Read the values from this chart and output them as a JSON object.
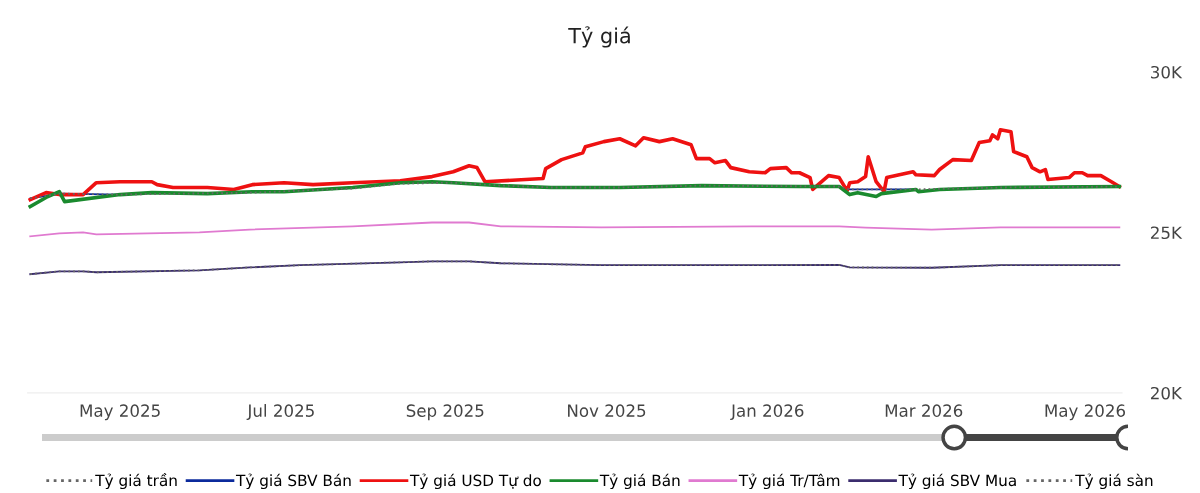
{
  "chart_data": {
    "type": "line",
    "title": "Tỷ giá",
    "legend": "bottom",
    "grid": false,
    "xlim": [
      "2025-03-27",
      "2026-05-15"
    ],
    "xticks": [
      {
        "value": "2025-05-01",
        "label": "May 2025"
      },
      {
        "value": "2025-07-01",
        "label": "Jul 2025"
      },
      {
        "value": "2025-09-01",
        "label": "Sep 2025"
      },
      {
        "value": "2025-11-01",
        "label": "Nov 2025"
      },
      {
        "value": "2026-01-01",
        "label": "Jan 2026"
      },
      {
        "value": "2026-03-01",
        "label": "Mar 2026"
      },
      {
        "value": "2026-05-01",
        "label": "May 2026"
      }
    ],
    "ylim": [
      20,
      30
    ],
    "yticks": [
      {
        "value": 20,
        "label": "20K"
      },
      {
        "value": 25,
        "label": "25K"
      },
      {
        "value": 30,
        "label": "30K"
      }
    ],
    "series": [
      {
        "name": "Tỷ giá trần",
        "color": "#666666",
        "line_style": "dotted",
        "x": [
          "2025-03-28",
          "2025-04-08",
          "2025-05-01",
          "2025-06-20",
          "2025-07-28",
          "2025-08-15",
          "2025-09-04",
          "2025-09-22",
          "2025-10-11",
          "2025-11-06",
          "2025-12-07",
          "2026-01-28",
          "2026-02-01",
          "2026-02-26",
          "2026-03-30",
          "2026-05-14"
        ],
        "values": [
          26.06,
          26.21,
          26.18,
          26.24,
          26.37,
          26.52,
          26.55,
          26.46,
          26.4,
          26.4,
          26.46,
          26.43,
          26.34,
          26.34,
          26.4,
          26.43
        ]
      },
      {
        "name": "Tỷ giá SBV Bán",
        "color": "#0b2a9c",
        "line_style": "solid",
        "x": [
          "2025-03-28",
          "2025-04-08",
          "2025-05-01",
          "2025-06-20",
          "2025-07-28",
          "2025-08-15",
          "2025-09-04",
          "2025-09-22",
          "2025-10-11",
          "2025-11-06",
          "2025-12-07",
          "2026-01-28",
          "2026-02-01",
          "2026-02-26"
        ],
        "values": [
          26.06,
          26.21,
          26.18,
          null,
          null,
          null,
          null,
          null,
          null,
          null,
          null,
          null,
          26.34,
          26.34
        ]
      },
      {
        "name": "Tỷ giá USD Tự do",
        "color": "#ee1111",
        "line_style": "solid",
        "x": [
          "2025-03-28",
          "2025-04-03",
          "2025-04-08",
          "2025-04-17",
          "2025-04-22",
          "2025-05-01",
          "2025-05-13",
          "2025-05-15",
          "2025-05-21",
          "2025-06-03",
          "2025-06-13",
          "2025-06-20",
          "2025-07-02",
          "2025-07-13",
          "2025-07-28",
          "2025-08-15",
          "2025-08-27",
          "2025-09-04",
          "2025-09-10",
          "2025-09-13",
          "2025-09-16",
          "2025-10-08",
          "2025-10-09",
          "2025-10-15",
          "2025-10-23",
          "2025-10-24",
          "2025-10-31",
          "2025-11-06",
          "2025-11-12",
          "2025-11-15",
          "2025-11-21",
          "2025-11-26",
          "2025-12-03",
          "2025-12-05",
          "2025-12-10",
          "2025-12-12",
          "2025-12-16",
          "2025-12-18",
          "2025-12-25",
          "2025-12-31",
          "2026-01-02",
          "2026-01-08",
          "2026-01-10",
          "2026-01-13",
          "2026-01-17",
          "2026-01-18",
          "2026-01-24",
          "2026-01-28",
          "2026-01-31",
          "2026-02-01",
          "2026-02-04",
          "2026-02-07",
          "2026-02-08",
          "2026-02-11",
          "2026-02-14",
          "2026-02-15",
          "2026-02-25",
          "2026-02-26",
          "2026-03-05",
          "2026-03-07",
          "2026-03-12",
          "2026-03-19",
          "2026-03-22",
          "2026-03-26",
          "2026-03-27",
          "2026-03-29",
          "2026-03-30",
          "2026-04-03",
          "2026-04-04",
          "2026-04-09",
          "2026-04-11",
          "2026-04-14",
          "2026-04-16",
          "2026-04-17",
          "2026-04-25",
          "2026-04-27",
          "2026-04-30",
          "2026-05-02",
          "2026-05-07",
          "2026-05-11",
          "2026-05-14"
        ],
        "values": [
          26.02,
          26.24,
          26.18,
          26.18,
          26.55,
          26.58,
          26.58,
          26.49,
          26.4,
          26.4,
          26.34,
          26.49,
          26.55,
          26.49,
          26.55,
          26.61,
          26.74,
          26.89,
          27.08,
          27.02,
          26.58,
          26.68,
          26.99,
          27.27,
          27.48,
          27.67,
          27.83,
          27.92,
          27.7,
          27.95,
          27.83,
          27.92,
          27.73,
          27.3,
          27.3,
          27.17,
          27.24,
          27.02,
          26.89,
          26.86,
          26.99,
          27.02,
          26.86,
          26.86,
          26.71,
          26.34,
          26.77,
          26.71,
          26.3,
          26.55,
          26.58,
          26.74,
          27.36,
          26.58,
          26.27,
          26.71,
          26.89,
          26.8,
          26.77,
          26.96,
          27.27,
          27.24,
          27.8,
          27.86,
          28.04,
          27.92,
          28.2,
          28.14,
          27.52,
          27.36,
          27.02,
          26.89,
          26.96,
          26.65,
          26.71,
          26.86,
          26.86,
          26.77,
          26.77,
          26.58,
          26.43
        ]
      },
      {
        "name": "Tỷ giá Bán",
        "color": "#1a8a2e",
        "line_style": "solid",
        "x": [
          "2025-03-28",
          "2025-04-03",
          "2025-04-08",
          "2025-04-10",
          "2025-05-01",
          "2025-05-13",
          "2025-06-03",
          "2025-06-20",
          "2025-07-02",
          "2025-07-28",
          "2025-08-15",
          "2025-08-27",
          "2025-09-04",
          "2025-09-22",
          "2025-10-11",
          "2025-11-06",
          "2025-12-07",
          "2026-01-13",
          "2026-01-28",
          "2026-02-01",
          "2026-02-04",
          "2026-02-11",
          "2026-02-13",
          "2026-02-26",
          "2026-02-27",
          "2026-03-07",
          "2026-03-30",
          "2026-05-14"
        ],
        "values": [
          25.81,
          26.09,
          26.27,
          25.96,
          26.18,
          26.24,
          26.21,
          26.27,
          26.27,
          26.4,
          26.55,
          26.58,
          26.55,
          26.46,
          26.4,
          26.4,
          26.46,
          26.43,
          26.43,
          26.18,
          26.24,
          26.12,
          26.21,
          26.34,
          26.27,
          26.34,
          26.4,
          26.43
        ]
      },
      {
        "name": "Tỷ giá Tr/Tâm",
        "color": "#e07ad0",
        "line_style": "solid",
        "x": [
          "2025-03-28",
          "2025-04-08",
          "2025-04-17",
          "2025-04-22",
          "2025-05-31",
          "2025-06-19",
          "2025-07-28",
          "2025-08-27",
          "2025-09-10",
          "2025-09-22",
          "2025-10-30",
          "2025-12-26",
          "2026-01-28",
          "2026-02-07",
          "2026-03-04",
          "2026-03-30",
          "2026-05-14"
        ],
        "values": [
          24.88,
          24.97,
          25.0,
          24.94,
          25.0,
          25.09,
          25.19,
          25.31,
          25.31,
          25.19,
          25.16,
          25.19,
          25.19,
          25.15,
          25.09,
          25.16,
          25.16
        ]
      },
      {
        "name": "Tỷ giá SBV Mua",
        "color": "#3b2d6e",
        "line_style": "solid",
        "x": [
          "2025-03-28",
          "2025-04-08",
          "2025-04-17",
          "2025-04-22",
          "2025-05-31",
          "2025-06-19",
          "2025-07-08",
          "2025-08-15",
          "2025-08-27",
          "2025-09-10",
          "2025-09-22",
          "2025-10-30",
          "2025-12-26",
          "2026-01-28",
          "2026-02-01",
          "2026-03-04",
          "2026-03-30",
          "2026-05-14"
        ],
        "values": [
          23.7,
          23.79,
          23.79,
          23.76,
          23.82,
          23.91,
          23.98,
          24.07,
          24.1,
          24.1,
          24.04,
          23.98,
          23.98,
          23.99,
          23.91,
          23.9,
          23.98,
          23.98
        ]
      },
      {
        "name": "Tỷ giá sàn",
        "color": "#666666",
        "line_style": "dotted",
        "x": [
          "2025-03-28",
          "2025-04-08",
          "2025-04-17",
          "2025-04-22",
          "2025-05-31",
          "2025-06-19",
          "2025-07-08",
          "2025-08-15",
          "2025-08-27",
          "2025-09-10",
          "2025-09-22",
          "2025-10-30",
          "2025-12-26",
          "2026-01-28",
          "2026-02-01",
          "2026-03-04",
          "2026-03-30",
          "2026-05-14"
        ],
        "values": [
          23.7,
          23.79,
          23.79,
          23.76,
          23.82,
          23.91,
          23.98,
          24.07,
          24.1,
          24.1,
          24.04,
          23.98,
          23.98,
          23.99,
          23.91,
          23.9,
          23.98,
          23.98
        ]
      }
    ]
  }
}
